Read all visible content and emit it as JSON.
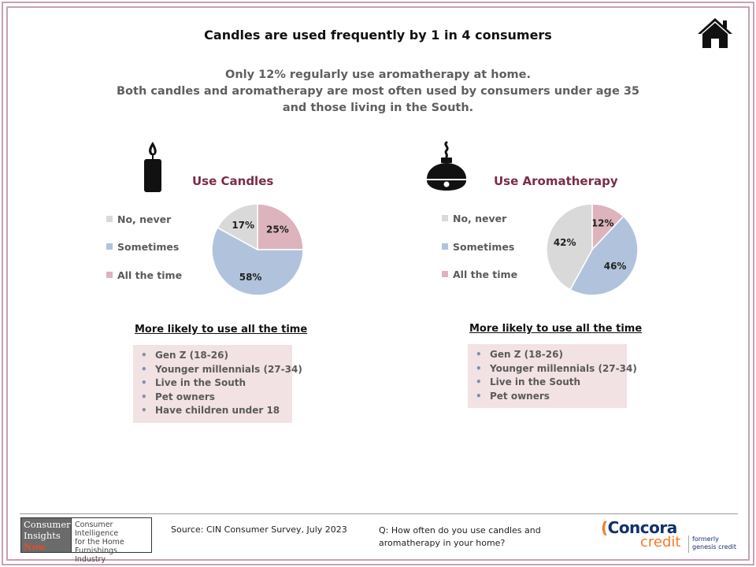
{
  "title": "Candles are used frequently by 1 in 4 consumers",
  "subtitle": {
    "line1": "Only 12% regularly use aromatherapy at home.",
    "line2": "Both candles and aromatherapy are most often used by consumers under age 35",
    "line3": "and those living in the South."
  },
  "icons": {
    "home": "home-icon",
    "candle": "candle-icon",
    "diffuser": "aromatherapy-diffuser-icon"
  },
  "colors": {
    "never": "#d9d9d9",
    "sometimes": "#b1c3dc",
    "all_the_time": "#ddb4bd",
    "panel_title": "#7b2c45",
    "frame": "#c9a1b3",
    "box_bg": "#f2e2e4"
  },
  "legend": [
    "No, never",
    "Sometimes",
    "All the time"
  ],
  "chart_data": [
    {
      "type": "pie",
      "title": "Use Candles",
      "categories": [
        "No, never",
        "Sometimes",
        "All the time"
      ],
      "values": [
        17,
        58,
        25
      ],
      "labels": [
        "17%",
        "58%",
        "25%"
      ],
      "start": "All the time"
    },
    {
      "type": "pie",
      "title": "Use Aromatherapy",
      "categories": [
        "No, never",
        "Sometimes",
        "All the time"
      ],
      "values": [
        42,
        46,
        12
      ],
      "labels": [
        "42%",
        "46%",
        "12%"
      ],
      "start": "All the time"
    }
  ],
  "likely": {
    "title": "More likely to use all the time",
    "candles": [
      "Gen Z (18-26)",
      "Younger millennials (27-34)",
      "Live in the South",
      "Pet owners",
      "Have children under 18"
    ],
    "aromatherapy": [
      "Gen Z (18-26)",
      "Younger millennials (27-34)",
      "Live in the South",
      "Pet owners"
    ]
  },
  "footer": {
    "cin_logo": {
      "line1": "Consumer",
      "line2": "Insights",
      "line3": "Now",
      "tag1": "Consumer Intelligence",
      "tag2": "for the Home",
      "tag3": "Furnishings Industry"
    },
    "source": "Source: CIN Consumer Survey, July 2023",
    "question": "Q: How often do you use candles and aromatherapy in your home?",
    "concora": {
      "word": "Concora",
      "credit": "credit",
      "formerly1": "formerly",
      "formerly2": "genesis credit"
    }
  }
}
